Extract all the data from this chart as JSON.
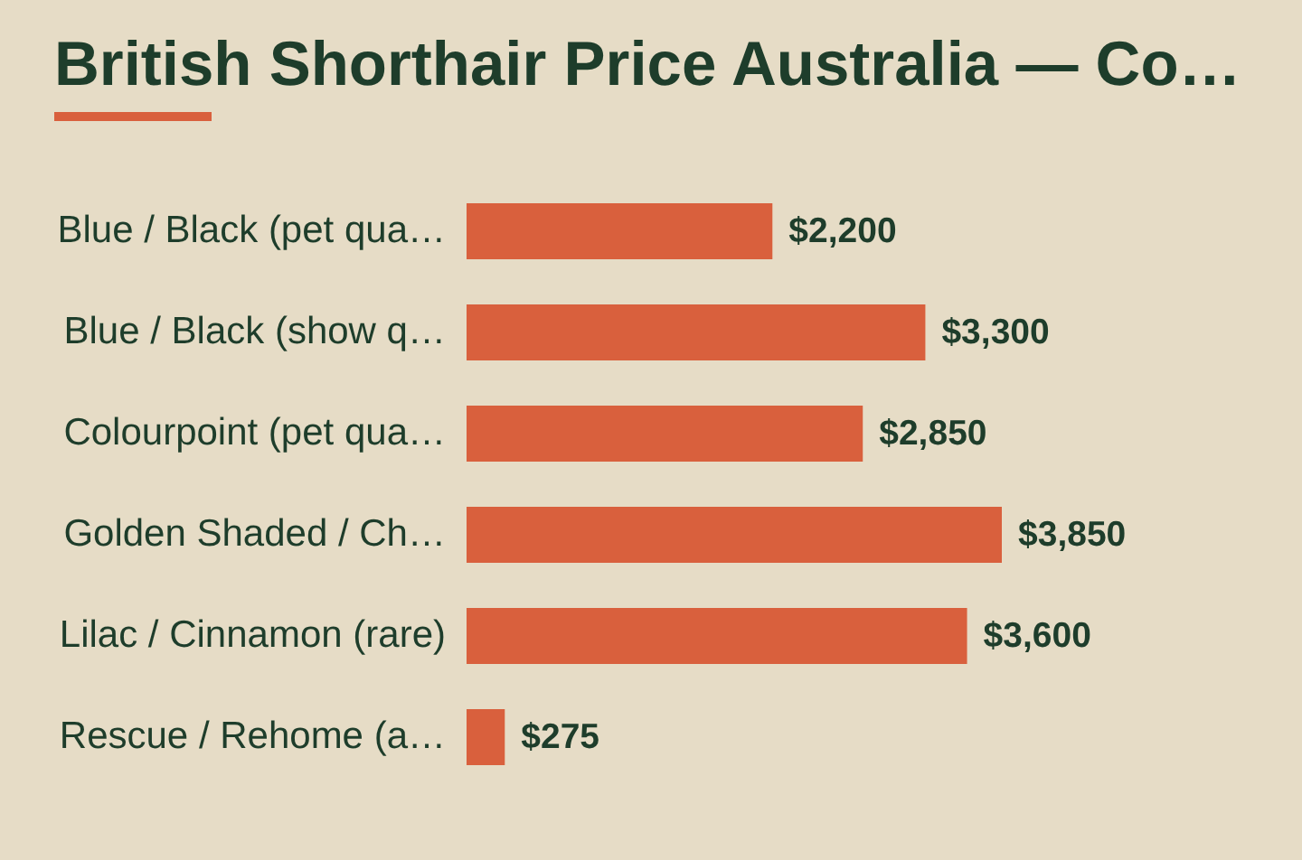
{
  "chart_data": {
    "type": "bar",
    "orientation": "horizontal",
    "title": "British Shorthair Price Australia — Co…",
    "categories": [
      "Blue / Black (pet qua…",
      "Blue / Black (show q…",
      "Colourpoint (pet qua…",
      "Golden Shaded / Ch…",
      "Lilac / Cinnamon (rare)",
      "Rescue / Rehome (a…"
    ],
    "values": [
      2200,
      3300,
      2850,
      3850,
      3600,
      275
    ],
    "value_labels": [
      "$2,200",
      "$3,300",
      "$2,850",
      "$3,850",
      "$3,600",
      "$275"
    ],
    "color": "#d9603d",
    "tick_labels": "y"
  }
}
